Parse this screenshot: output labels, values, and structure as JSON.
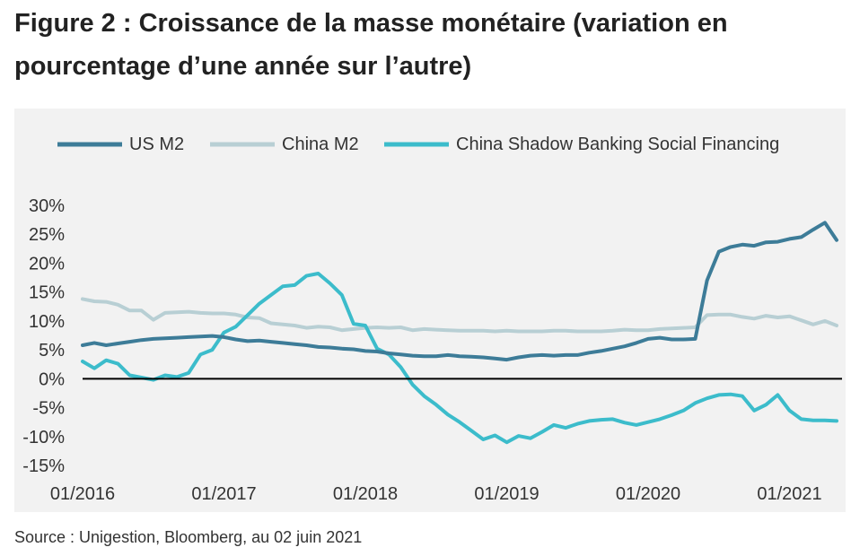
{
  "figure": {
    "title": "Figure 2 : Croissance de la masse monétaire (variation en pourcentage d’une année sur l’autre)",
    "source": "Source : Unigestion, Bloomberg, au 02 juin 2021"
  },
  "chart_data": {
    "type": "line",
    "title": "",
    "xlabel": "",
    "ylabel": "",
    "ylim": [
      -15,
      30
    ],
    "yticks": [
      "30%",
      "25%",
      "20%",
      "15%",
      "10%",
      "5%",
      "0%",
      "-5%",
      "-10%",
      "-15%"
    ],
    "ytick_values": [
      30,
      25,
      20,
      15,
      10,
      5,
      0,
      -5,
      -10,
      -15
    ],
    "xticks": [
      "01/2016",
      "01/2017",
      "01/2018",
      "01/2019",
      "01/2020",
      "01/2021"
    ],
    "xtick_values": [
      0,
      12,
      24,
      36,
      48,
      60
    ],
    "xlim": [
      0,
      64
    ],
    "x_unit": "months since 01/2016",
    "zero_line": true,
    "grid": false,
    "legend_position": "top",
    "colors": {
      "us_m2": "#3d7c98",
      "china_m2": "#b8cfd4",
      "china_shadow": "#3cbccb",
      "zero_line": "#000000",
      "panel_bg": "#f2f2f2"
    },
    "series": [
      {
        "key": "us_m2",
        "name": "US M2",
        "color": "#3d7c98",
        "x": [
          0,
          1,
          2,
          3,
          4,
          5,
          6,
          7,
          8,
          9,
          10,
          11,
          12,
          13,
          14,
          15,
          16,
          17,
          18,
          19,
          20,
          21,
          22,
          23,
          24,
          25,
          26,
          27,
          28,
          29,
          30,
          31,
          32,
          33,
          34,
          35,
          36,
          37,
          38,
          39,
          40,
          41,
          42,
          43,
          44,
          45,
          46,
          47,
          48,
          49,
          50,
          51,
          52,
          53,
          54,
          55,
          56,
          57,
          58,
          59,
          60,
          61,
          62,
          63,
          64
        ],
        "values": [
          5.8,
          6.2,
          5.8,
          6.1,
          6.4,
          6.7,
          6.9,
          7.0,
          7.1,
          7.2,
          7.3,
          7.4,
          7.2,
          6.8,
          6.5,
          6.6,
          6.4,
          6.2,
          6.0,
          5.8,
          5.5,
          5.4,
          5.2,
          5.1,
          4.8,
          4.7,
          4.4,
          4.2,
          4.0,
          3.9,
          3.9,
          4.1,
          3.9,
          3.8,
          3.7,
          3.5,
          3.3,
          3.7,
          4.0,
          4.1,
          4.0,
          4.1,
          4.1,
          4.5,
          4.8,
          5.2,
          5.6,
          6.2,
          6.9,
          7.1,
          6.8,
          6.8,
          6.9,
          17.0,
          22.0,
          22.8,
          23.2,
          23.0,
          23.6,
          23.7,
          24.2,
          24.5,
          25.8,
          27.0,
          24.0
        ]
      },
      {
        "key": "china_m2",
        "name": "China M2",
        "color": "#b8cfd4",
        "x": [
          0,
          1,
          2,
          3,
          4,
          5,
          6,
          7,
          8,
          9,
          10,
          11,
          12,
          13,
          14,
          15,
          16,
          17,
          18,
          19,
          20,
          21,
          22,
          23,
          24,
          25,
          26,
          27,
          28,
          29,
          30,
          31,
          32,
          33,
          34,
          35,
          36,
          37,
          38,
          39,
          40,
          41,
          42,
          43,
          44,
          45,
          46,
          47,
          48,
          49,
          50,
          51,
          52,
          53,
          54,
          55,
          56,
          57,
          58,
          59,
          60,
          61,
          62,
          63,
          64
        ],
        "values": [
          13.8,
          13.4,
          13.3,
          12.8,
          11.8,
          11.8,
          10.2,
          11.4,
          11.5,
          11.6,
          11.4,
          11.3,
          11.3,
          11.1,
          10.6,
          10.5,
          9.6,
          9.4,
          9.2,
          8.8,
          9.0,
          8.9,
          8.4,
          8.6,
          8.8,
          8.9,
          8.8,
          8.9,
          8.4,
          8.6,
          8.5,
          8.4,
          8.3,
          8.3,
          8.3,
          8.2,
          8.3,
          8.2,
          8.2,
          8.2,
          8.3,
          8.3,
          8.2,
          8.2,
          8.2,
          8.3,
          8.5,
          8.4,
          8.4,
          8.6,
          8.7,
          8.8,
          8.9,
          11.0,
          11.1,
          11.1,
          10.7,
          10.4,
          10.9,
          10.6,
          10.8,
          10.1,
          9.4,
          10.0,
          9.2
        ]
      },
      {
        "key": "china_shadow",
        "name": "China Shadow Banking Social Financing",
        "color": "#3cbccb",
        "x": [
          0,
          1,
          2,
          3,
          4,
          5,
          6,
          7,
          8,
          9,
          10,
          11,
          12,
          13,
          14,
          15,
          16,
          17,
          18,
          19,
          20,
          21,
          22,
          23,
          24,
          25,
          26,
          27,
          28,
          29,
          30,
          31,
          32,
          33,
          34,
          35,
          36,
          37,
          38,
          39,
          40,
          41,
          42,
          43,
          44,
          45,
          46,
          47,
          48,
          49,
          50,
          51,
          52,
          53,
          54,
          55,
          56,
          57,
          58,
          59,
          60,
          61,
          62,
          63,
          64
        ],
        "values": [
          3.0,
          1.8,
          3.2,
          2.6,
          0.6,
          0.2,
          -0.2,
          0.6,
          0.3,
          1.0,
          4.2,
          5.0,
          8.0,
          9.0,
          11.0,
          13.0,
          14.5,
          16.0,
          16.2,
          17.8,
          18.2,
          16.5,
          14.5,
          9.5,
          9.2,
          5.2,
          4.2,
          2.0,
          -1.0,
          -3.0,
          -4.5,
          -6.2,
          -7.5,
          -9.0,
          -10.5,
          -9.8,
          -11.0,
          -9.9,
          -10.3,
          -9.2,
          -8.0,
          -8.5,
          -7.8,
          -7.3,
          -7.1,
          -7.0,
          -7.6,
          -8.0,
          -7.5,
          -7.0,
          -6.3,
          -5.5,
          -4.2,
          -3.4,
          -2.8,
          -2.7,
          -3.0,
          -5.5,
          -4.5,
          -2.8,
          -5.5,
          -7.0,
          -7.2,
          -7.2,
          -7.3
        ]
      }
    ]
  }
}
